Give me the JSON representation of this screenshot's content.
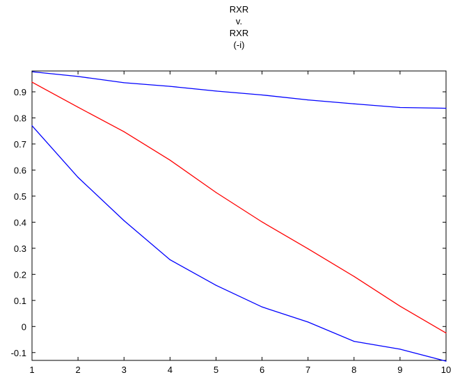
{
  "chart_data": {
    "type": "line",
    "title_lines": [
      "RXR",
      "v.",
      "RXR",
      "(-i)"
    ],
    "xlabel": "",
    "ylabel": "",
    "x": [
      1,
      2,
      3,
      4,
      5,
      6,
      7,
      8,
      9,
      10
    ],
    "xlim": [
      1,
      10
    ],
    "ylim": [
      -0.13,
      0.98
    ],
    "x_ticks": [
      1,
      2,
      3,
      4,
      5,
      6,
      7,
      8,
      9,
      10
    ],
    "y_ticks": [
      -0.1,
      0,
      0.1,
      0.2,
      0.3,
      0.4,
      0.5,
      0.6,
      0.7,
      0.8,
      0.9
    ],
    "grid": false,
    "series": [
      {
        "color": "#0000ff",
        "values": [
          0.977,
          0.959,
          0.935,
          0.921,
          0.903,
          0.888,
          0.869,
          0.854,
          0.84,
          0.837
        ]
      },
      {
        "color": "#ff0000",
        "values": [
          0.937,
          0.841,
          0.747,
          0.638,
          0.514,
          0.401,
          0.298,
          0.192,
          0.078,
          -0.025
        ]
      },
      {
        "color": "#0000ff",
        "values": [
          0.77,
          0.572,
          0.406,
          0.256,
          0.158,
          0.075,
          0.017,
          -0.057,
          -0.087,
          -0.133
        ]
      }
    ]
  }
}
